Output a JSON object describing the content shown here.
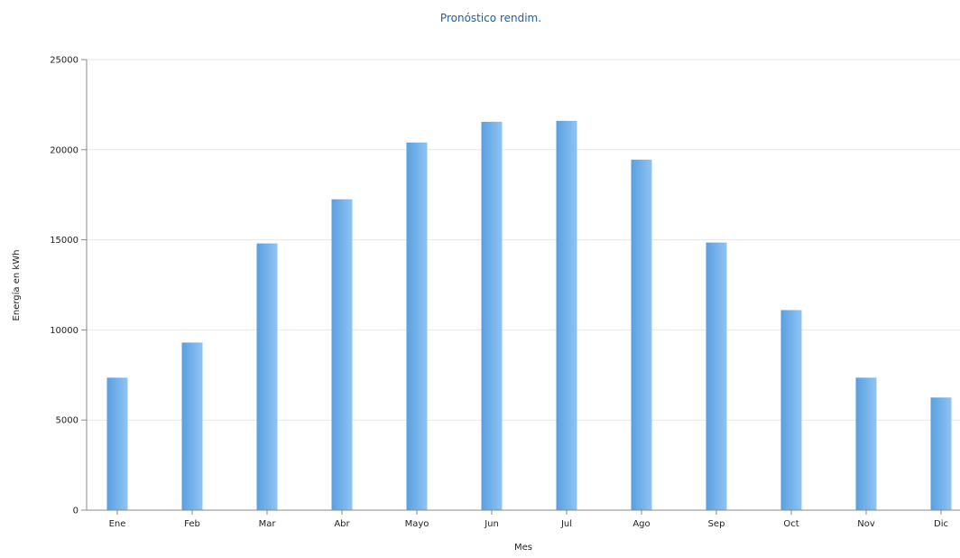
{
  "chart_data": {
    "type": "bar",
    "title": "Pronóstico rendim.",
    "xlabel": "Mes",
    "ylabel": "Energía en kWh",
    "categories": [
      "Ene",
      "Feb",
      "Mar",
      "Abr",
      "Mayo",
      "Jun",
      "Jul",
      "Ago",
      "Sep",
      "Oct",
      "Nov",
      "Dic"
    ],
    "values": [
      7350,
      9300,
      14800,
      17250,
      20400,
      21550,
      21600,
      19450,
      14850,
      11100,
      7350,
      6250
    ],
    "ylim": [
      0,
      25000
    ],
    "yticks": [
      "0",
      "5000",
      "10000",
      "15000",
      "20000",
      "25000"
    ],
    "grid": true,
    "legend": "none",
    "colors": {
      "title": "#1f5fa8",
      "bar_light": "#8ec4f3",
      "bar_dark": "#5a9fe0",
      "grid": "#e6e6e6",
      "axis": "#888888"
    }
  }
}
